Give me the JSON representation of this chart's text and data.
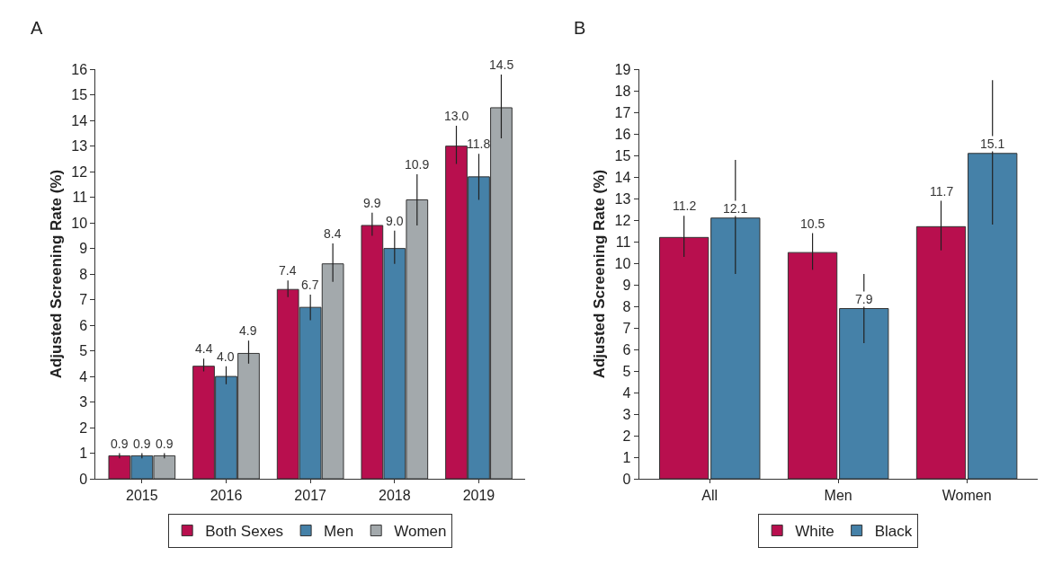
{
  "chart_data": [
    {
      "type": "bar",
      "title": "A",
      "ylabel": "Adjusted Screening Rate (%)",
      "categories": [
        "2015",
        "2016",
        "2017",
        "2018",
        "2019"
      ],
      "ylim": [
        0,
        16
      ],
      "yticks": [
        0,
        1,
        2,
        3,
        4,
        5,
        6,
        7,
        8,
        9,
        10,
        11,
        12,
        13,
        14,
        15,
        16
      ],
      "grid": false,
      "legend": "bottom",
      "data_labels": true,
      "series": [
        {
          "name": "Both Sexes",
          "color": "#b80f4e",
          "values": [
            0.9,
            4.4,
            7.4,
            9.9,
            13.0
          ],
          "value_labels": [
            "0.9",
            "4.4",
            "7.4",
            "9.9",
            "13.0"
          ],
          "errors": [
            [
              0.8,
              1.0
            ],
            [
              4.2,
              4.7
            ],
            [
              7.1,
              7.75
            ],
            [
              9.5,
              10.4
            ],
            [
              12.3,
              13.8
            ]
          ]
        },
        {
          "name": "Men",
          "color": "#4581a8",
          "values": [
            0.9,
            4.0,
            6.7,
            9.0,
            11.8
          ],
          "value_labels": [
            "0.9",
            "4.0",
            "6.7",
            "9.0",
            "11.8"
          ],
          "errors": [
            [
              0.8,
              1.0
            ],
            [
              3.7,
              4.4
            ],
            [
              6.2,
              7.2
            ],
            [
              8.4,
              9.7
            ],
            [
              10.9,
              12.7
            ]
          ]
        },
        {
          "name": "Women",
          "color": "#a3a9ac",
          "values": [
            0.9,
            4.9,
            8.4,
            10.9,
            14.5
          ],
          "errors": [
            [
              0.8,
              1.0
            ],
            [
              4.5,
              5.4
            ],
            [
              7.7,
              9.2
            ],
            [
              9.9,
              11.9
            ],
            [
              13.3,
              15.8
            ]
          ]
        }
      ]
    },
    {
      "type": "bar",
      "title": "B",
      "ylabel": "Adjusted Screening Rate (%)",
      "categories": [
        "All",
        "Men",
        "Women"
      ],
      "ylim": [
        0,
        19
      ],
      "yticks": [
        0,
        1,
        2,
        3,
        4,
        5,
        6,
        7,
        8,
        9,
        10,
        11,
        12,
        13,
        14,
        15,
        16,
        17,
        18,
        19
      ],
      "grid": false,
      "legend": "bottom",
      "data_labels": true,
      "series": [
        {
          "name": "White",
          "color": "#b80f4e",
          "values": [
            11.2,
            10.5,
            11.7
          ],
          "errors": [
            [
              10.3,
              12.2
            ],
            [
              9.7,
              11.4
            ],
            [
              10.6,
              12.9
            ]
          ]
        },
        {
          "name": "Black",
          "color": "#4581a8",
          "values": [
            12.1,
            7.9,
            15.1
          ],
          "errors": [
            [
              9.5,
              14.8
            ],
            [
              6.3,
              9.5
            ],
            [
              11.8,
              18.5
            ]
          ]
        }
      ]
    }
  ]
}
